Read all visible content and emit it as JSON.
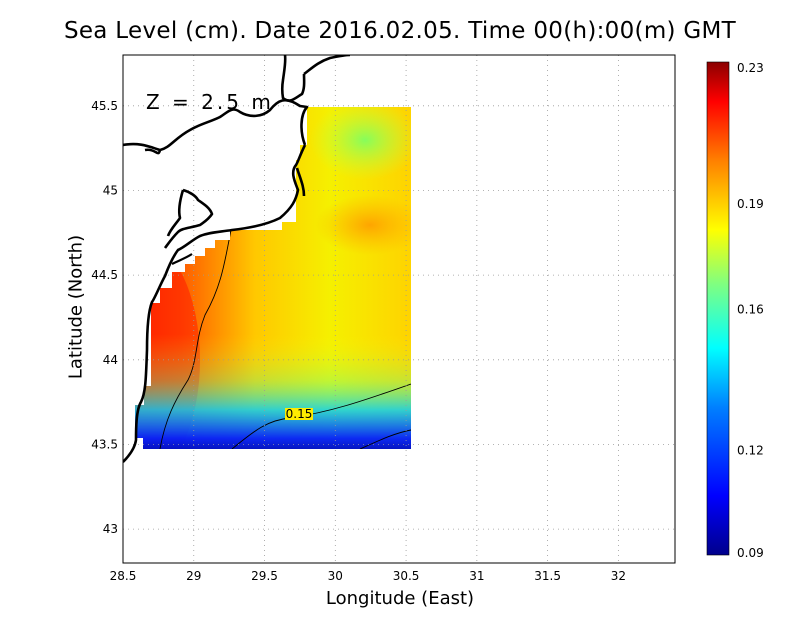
{
  "title": "Sea Level (cm). Date 2016.02.05. Time 00(h):00(m) GMT",
  "depth_label": "Z = 2.5 m",
  "chart_data": {
    "type": "heatmap",
    "title": "Sea Level (cm). Date 2016.02.05. Time 00(h):00(m) GMT",
    "xlabel": "Longitude (East)",
    "ylabel": "Latitude (North)",
    "xlim": [
      28.5,
      32.4
    ],
    "ylim": [
      42.8,
      45.8
    ],
    "x_ticks": [
      "28.5",
      "29",
      "29.5",
      "30",
      "30.5",
      "31",
      "31.5",
      "32"
    ],
    "y_ticks": [
      "43",
      "43.5",
      "44",
      "44.5",
      "45",
      "45.5"
    ],
    "grid": true,
    "colorbar": {
      "min": 0.09,
      "max": 0.23,
      "ticks": [
        "0.09",
        "0.12",
        "0.16",
        "0.19",
        "0.23"
      ],
      "colormap": [
        "#00008b",
        "#0000ff",
        "#0080ff",
        "#00ffff",
        "#80ff80",
        "#ffff00",
        "#ff8000",
        "#ff0000",
        "#8b0000"
      ]
    },
    "contours": [
      {
        "level": 0.15,
        "label": "0.15"
      }
    ],
    "data_extent": {
      "lon": [
        28.6,
        30.5
      ],
      "lat": [
        43.5,
        45.5
      ]
    }
  }
}
